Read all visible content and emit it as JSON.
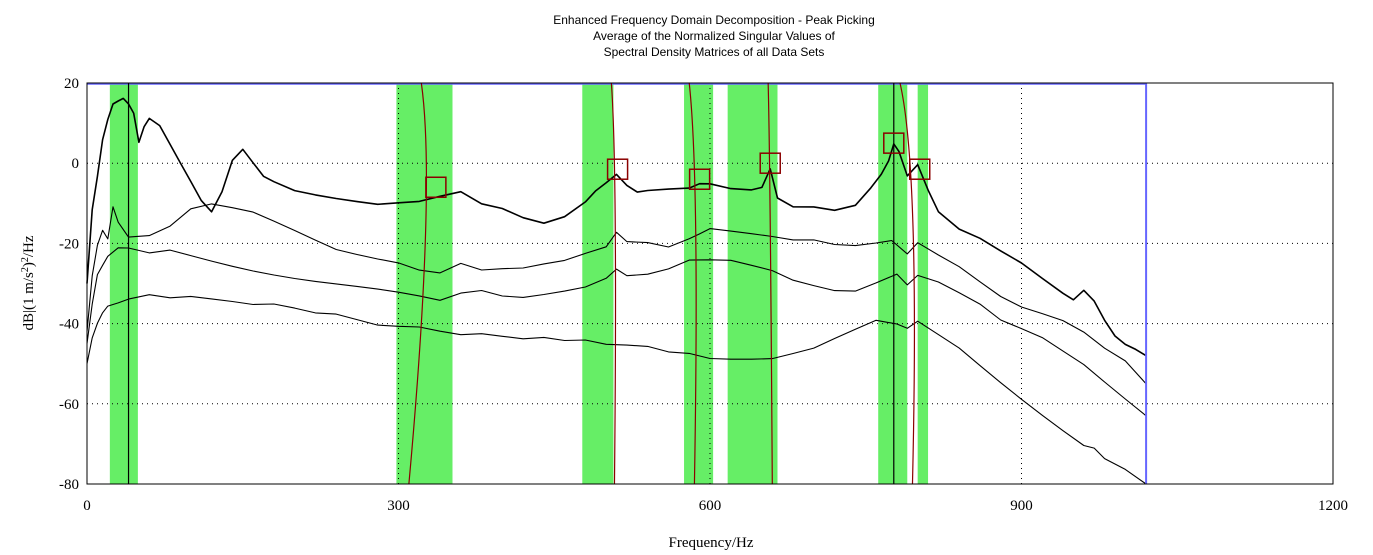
{
  "chart_data": {
    "type": "line",
    "title_lines": [
      "Enhanced Frequency Domain Decomposition - Peak Picking",
      "Average of the Normalized Singular Values of",
      "Spectral Density Matrices of all Data Sets"
    ],
    "xlabel": "Frequency/Hz",
    "ylabel_parts": [
      "dB|(1 m/s",
      "2",
      ")",
      "2",
      "/Hz"
    ],
    "xlim": [
      0,
      1200
    ],
    "ylim": [
      -80,
      20
    ],
    "xticks": [
      0,
      300,
      600,
      900,
      1200
    ],
    "yticks": [
      -80,
      -60,
      -40,
      -20,
      0,
      20
    ],
    "grid": "dotted",
    "legend": "none",
    "colors": {
      "svd_lines": "#000000",
      "bands": "#66ee66",
      "peak_markers": "#8b0000",
      "blue_trace": "#6666ff"
    },
    "green_bands": [
      [
        22,
        49
      ],
      [
        298,
        352
      ],
      [
        477,
        507
      ],
      [
        575,
        603
      ],
      [
        617,
        665
      ],
      [
        762,
        790
      ],
      [
        800,
        810
      ]
    ],
    "peak_markers": [
      {
        "x": 336,
        "y": -6
      },
      {
        "x": 511,
        "y": -1.5
      },
      {
        "x": 590,
        "y": -4
      },
      {
        "x": 658,
        "y": 0
      },
      {
        "x": 777,
        "y": 5
      },
      {
        "x": 802,
        "y": -1.5
      }
    ],
    "series": [
      {
        "x": [
          0,
          5,
          10,
          15,
          20,
          25,
          30,
          35,
          40,
          45,
          50,
          55,
          60,
          70,
          80,
          90,
          100,
          110,
          120,
          130,
          140,
          150,
          160,
          170,
          180,
          200,
          220,
          240,
          260,
          280,
          300,
          320,
          340,
          360,
          380,
          400,
          420,
          440,
          460,
          480,
          490,
          500,
          510,
          520,
          530,
          540,
          560,
          580,
          590,
          600,
          620,
          640,
          650,
          658,
          665,
          680,
          700,
          720,
          740,
          755,
          765,
          772,
          777,
          782,
          790,
          800,
          810,
          820,
          840,
          860,
          880,
          900,
          920,
          940,
          950,
          960,
          970,
          980,
          990,
          1000,
          1010,
          1020
        ],
        "y": [
          -30,
          -12,
          -4,
          5,
          10,
          14,
          15,
          16,
          15,
          13,
          6,
          10,
          12,
          10,
          5,
          0,
          -5,
          -10,
          -13,
          -8,
          0,
          3,
          0,
          -3,
          -4,
          -6,
          -7,
          -8,
          -9,
          -10,
          -10,
          -10,
          -9,
          -8,
          -11,
          -12,
          -14,
          -15,
          -13,
          -9,
          -6,
          -4,
          -2,
          -5,
          -7,
          -7,
          -7,
          -7,
          -6,
          -6,
          -7,
          -7,
          -6,
          -1,
          -8,
          -10,
          -10,
          -11,
          -10,
          -6,
          -3,
          0,
          4,
          2,
          -4,
          -1,
          -7,
          -12,
          -16,
          -18,
          -21,
          -24,
          -28,
          -32,
          -34,
          -32,
          -35,
          -40,
          -44,
          -46,
          -47,
          -48
        ]
      },
      {
        "x": [
          0,
          5,
          10,
          15,
          20,
          25,
          30,
          40,
          60,
          80,
          100,
          120,
          140,
          160,
          180,
          200,
          220,
          240,
          260,
          280,
          300,
          320,
          340,
          360,
          380,
          400,
          420,
          440,
          460,
          480,
          500,
          510,
          520,
          540,
          560,
          580,
          590,
          600,
          620,
          640,
          660,
          680,
          700,
          720,
          740,
          760,
          775,
          790,
          800,
          820,
          840,
          860,
          880,
          900,
          920,
          940,
          960,
          980,
          1000,
          1020
        ],
        "y": [
          -42,
          -28,
          -20,
          -16,
          -18,
          -10,
          -14,
          -18,
          -18,
          -16,
          -12,
          -11,
          -12,
          -13,
          -15,
          -17,
          -19,
          -21,
          -22,
          -23,
          -24,
          -26,
          -27,
          -25,
          -27,
          -27,
          -27,
          -26,
          -25,
          -23,
          -21,
          -17,
          -19,
          -19,
          -20,
          -18,
          -17,
          -16,
          -17,
          -18,
          -19,
          -20,
          -20,
          -21,
          -21,
          -20,
          -19,
          -22,
          -19,
          -22,
          -25,
          -29,
          -33,
          -36,
          -38,
          -40,
          -43,
          -47,
          -50,
          -55
        ]
      },
      {
        "x": [
          0,
          5,
          10,
          15,
          20,
          30,
          40,
          60,
          80,
          100,
          120,
          140,
          160,
          180,
          200,
          220,
          240,
          260,
          280,
          300,
          320,
          340,
          360,
          380,
          400,
          420,
          440,
          460,
          480,
          500,
          510,
          520,
          540,
          560,
          580,
          600,
          620,
          640,
          660,
          680,
          700,
          720,
          740,
          760,
          780,
          790,
          800,
          820,
          840,
          860,
          880,
          900,
          920,
          940,
          960,
          980,
          1000,
          1020
        ],
        "y": [
          -45,
          -35,
          -28,
          -26,
          -24,
          -22,
          -22,
          -23,
          -22,
          -23,
          -24,
          -25,
          -26,
          -27,
          -28,
          -29,
          -30,
          -31,
          -32,
          -33,
          -34,
          -35,
          -33,
          -32,
          -33,
          -33,
          -32,
          -31,
          -30,
          -28,
          -26,
          -28,
          -28,
          -27,
          -25,
          -25,
          -25,
          -26,
          -27,
          -29,
          -30,
          -31,
          -31,
          -29,
          -27,
          -30,
          -28,
          -30,
          -33,
          -36,
          -40,
          -42,
          -44,
          -47,
          -50,
          -54,
          -58,
          -63
        ]
      },
      {
        "x": [
          0,
          5,
          10,
          15,
          20,
          30,
          40,
          60,
          80,
          100,
          120,
          140,
          160,
          180,
          200,
          220,
          240,
          260,
          280,
          300,
          320,
          340,
          360,
          380,
          400,
          420,
          440,
          460,
          480,
          500,
          520,
          540,
          560,
          580,
          600,
          620,
          640,
          660,
          680,
          700,
          720,
          740,
          760,
          780,
          790,
          800,
          820,
          840,
          860,
          880,
          900,
          920,
          940,
          960,
          970,
          980,
          1000,
          1020
        ],
        "y": [
          -50,
          -44,
          -40,
          -37,
          -35,
          -34,
          -33,
          -32,
          -33,
          -33,
          -34,
          -35,
          -36,
          -36,
          -37,
          -38,
          -38,
          -39,
          -40,
          -40,
          -40,
          -41,
          -42,
          -42,
          -43,
          -44,
          -44,
          -45,
          -45,
          -46,
          -46,
          -46,
          -47,
          -47,
          -48,
          -48,
          -48,
          -48,
          -47,
          -46,
          -44,
          -42,
          -40,
          -41,
          -42,
          -40,
          -43,
          -46,
          -50,
          -54,
          -58,
          -62,
          -66,
          -70,
          -71,
          -74,
          -77,
          -80
        ]
      }
    ]
  }
}
